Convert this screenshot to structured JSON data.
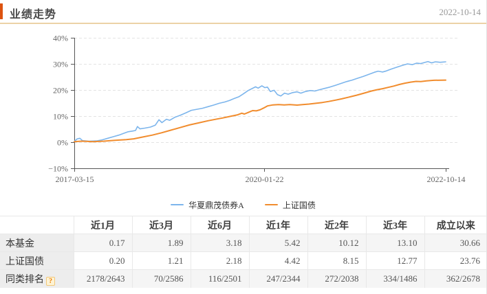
{
  "header": {
    "title": "业绩走势",
    "date": "2022-10-14",
    "accent_color": "#dd5310"
  },
  "chart_data": {
    "type": "line",
    "title": "业绩走势",
    "grid": "dashed-horizontal",
    "legend_position": "bottom",
    "axis_color": "#555555",
    "grid_color": "#e3e3e3",
    "label_color": "#666666",
    "x_axis": {
      "tick_labels": [
        "2017-03-15",
        "2020-01-22",
        "2022-10-14"
      ],
      "tick_positions": [
        0,
        0.5113,
        1
      ]
    },
    "y_axis": {
      "min": -10,
      "max": 40,
      "unit": "%",
      "tick_values": [
        40,
        30,
        20,
        10,
        0,
        -10
      ],
      "tick_labels": [
        "40%",
        "30%",
        "20%",
        "10%",
        "0%",
        "−10%"
      ]
    },
    "series": [
      {
        "name": "华夏鼎茂债券A",
        "color": "#7cb5ec",
        "width": 1.6,
        "points": [
          [
            0,
            0.3
          ],
          [
            0.008,
            1.3
          ],
          [
            0.015,
            1.5
          ],
          [
            0.022,
            0.6
          ],
          [
            0.04,
            0.4
          ],
          [
            0.06,
            0.5
          ],
          [
            0.075,
            0.9
          ],
          [
            0.09,
            1.5
          ],
          [
            0.105,
            2.1
          ],
          [
            0.12,
            2.7
          ],
          [
            0.133,
            3.4
          ],
          [
            0.145,
            4.0
          ],
          [
            0.158,
            4.3
          ],
          [
            0.165,
            4.5
          ],
          [
            0.17,
            6.0
          ],
          [
            0.177,
            5.1
          ],
          [
            0.19,
            5.4
          ],
          [
            0.205,
            5.8
          ],
          [
            0.218,
            6.5
          ],
          [
            0.228,
            8.6
          ],
          [
            0.236,
            7.5
          ],
          [
            0.248,
            8.8
          ],
          [
            0.257,
            8.4
          ],
          [
            0.27,
            9.5
          ],
          [
            0.285,
            10.3
          ],
          [
            0.3,
            11.2
          ],
          [
            0.315,
            12.2
          ],
          [
            0.33,
            12.6
          ],
          [
            0.345,
            13.0
          ],
          [
            0.36,
            13.6
          ],
          [
            0.375,
            14.2
          ],
          [
            0.39,
            14.9
          ],
          [
            0.405,
            15.4
          ],
          [
            0.418,
            16.0
          ],
          [
            0.43,
            16.7
          ],
          [
            0.443,
            17.4
          ],
          [
            0.455,
            18.5
          ],
          [
            0.468,
            19.8
          ],
          [
            0.478,
            20.5
          ],
          [
            0.488,
            21.2
          ],
          [
            0.495,
            20.7
          ],
          [
            0.505,
            21.6
          ],
          [
            0.513,
            20.9
          ],
          [
            0.52,
            21.1
          ],
          [
            0.528,
            19.4
          ],
          [
            0.538,
            19.9
          ],
          [
            0.547,
            18.2
          ],
          [
            0.556,
            17.7
          ],
          [
            0.566,
            18.8
          ],
          [
            0.576,
            18.4
          ],
          [
            0.588,
            19.0
          ],
          [
            0.6,
            19.3
          ],
          [
            0.61,
            18.8
          ],
          [
            0.622,
            19.4
          ],
          [
            0.635,
            19.8
          ],
          [
            0.648,
            19.6
          ],
          [
            0.66,
            20.1
          ],
          [
            0.674,
            20.6
          ],
          [
            0.688,
            21.1
          ],
          [
            0.703,
            21.8
          ],
          [
            0.718,
            22.5
          ],
          [
            0.733,
            23.2
          ],
          [
            0.748,
            23.8
          ],
          [
            0.763,
            24.5
          ],
          [
            0.778,
            25.2
          ],
          [
            0.793,
            26.0
          ],
          [
            0.808,
            26.8
          ],
          [
            0.818,
            27.2
          ],
          [
            0.83,
            26.9
          ],
          [
            0.84,
            27.3
          ],
          [
            0.853,
            28.0
          ],
          [
            0.868,
            28.7
          ],
          [
            0.883,
            29.4
          ],
          [
            0.897,
            30.0
          ],
          [
            0.91,
            29.7
          ],
          [
            0.922,
            30.3
          ],
          [
            0.932,
            30.1
          ],
          [
            0.942,
            30.5
          ],
          [
            0.952,
            30.9
          ],
          [
            0.962,
            30.4
          ],
          [
            0.972,
            30.8
          ],
          [
            0.985,
            30.6
          ],
          [
            1,
            30.8
          ]
        ]
      },
      {
        "name": "上证国债",
        "color": "#f18c2d",
        "width": 2,
        "points": [
          [
            0,
            0.2
          ],
          [
            0.02,
            0.4
          ],
          [
            0.05,
            0.2
          ],
          [
            0.08,
            0.4
          ],
          [
            0.11,
            0.7
          ],
          [
            0.14,
            1.0
          ],
          [
            0.16,
            1.3
          ],
          [
            0.185,
            2.0
          ],
          [
            0.21,
            2.7
          ],
          [
            0.235,
            3.6
          ],
          [
            0.26,
            4.6
          ],
          [
            0.285,
            5.6
          ],
          [
            0.31,
            6.6
          ],
          [
            0.335,
            7.4
          ],
          [
            0.36,
            8.2
          ],
          [
            0.385,
            8.9
          ],
          [
            0.4,
            9.3
          ],
          [
            0.42,
            9.9
          ],
          [
            0.44,
            10.5
          ],
          [
            0.451,
            11.1
          ],
          [
            0.458,
            10.8
          ],
          [
            0.47,
            11.5
          ],
          [
            0.48,
            12.1
          ],
          [
            0.49,
            12.0
          ],
          [
            0.5,
            12.4
          ],
          [
            0.51,
            13.1
          ],
          [
            0.52,
            13.9
          ],
          [
            0.535,
            14.3
          ],
          [
            0.55,
            14.4
          ],
          [
            0.565,
            14.3
          ],
          [
            0.58,
            14.4
          ],
          [
            0.6,
            14.2
          ],
          [
            0.615,
            14.4
          ],
          [
            0.632,
            14.6
          ],
          [
            0.65,
            14.9
          ],
          [
            0.668,
            15.2
          ],
          [
            0.685,
            15.6
          ],
          [
            0.703,
            16.1
          ],
          [
            0.72,
            16.6
          ],
          [
            0.74,
            17.3
          ],
          [
            0.76,
            18.0
          ],
          [
            0.78,
            18.8
          ],
          [
            0.8,
            19.6
          ],
          [
            0.815,
            20.1
          ],
          [
            0.83,
            20.5
          ],
          [
            0.845,
            21.0
          ],
          [
            0.86,
            21.5
          ],
          [
            0.875,
            22.1
          ],
          [
            0.89,
            22.6
          ],
          [
            0.905,
            23.0
          ],
          [
            0.92,
            23.3
          ],
          [
            0.933,
            23.2
          ],
          [
            0.948,
            23.5
          ],
          [
            0.968,
            23.7
          ],
          [
            1,
            23.8
          ]
        ]
      }
    ]
  },
  "table": {
    "columns": [
      "",
      "近1月",
      "近3月",
      "近6月",
      "近1年",
      "近2年",
      "近3年",
      "成立以来"
    ],
    "help_icon": "?",
    "rows": [
      {
        "label": "本基金",
        "has_help_icon": false,
        "values": [
          "0.17",
          "1.89",
          "3.18",
          "5.42",
          "10.12",
          "13.10",
          "30.66"
        ]
      },
      {
        "label": "上证国债",
        "has_help_icon": false,
        "values": [
          "0.20",
          "1.21",
          "2.18",
          "4.42",
          "8.15",
          "12.77",
          "23.76"
        ]
      },
      {
        "label": "同类排名",
        "has_help_icon": true,
        "values": [
          "2178/2643",
          "70/2586",
          "116/2501",
          "247/2344",
          "272/2038",
          "334/1486",
          "362/2678"
        ]
      }
    ]
  }
}
